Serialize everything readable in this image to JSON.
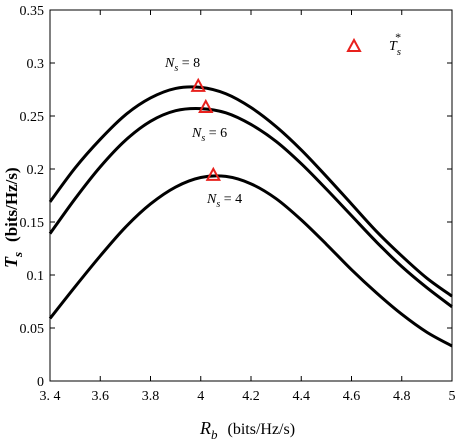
{
  "chart_data": {
    "type": "line",
    "title": "",
    "xlabel": {
      "symbol": "R",
      "subscript": "b",
      "units": "(bits/Hz/s)"
    },
    "ylabel": {
      "symbol": "T",
      "subscript": "s",
      "units": "(bits/Hz/s)"
    },
    "xlim": [
      3.4,
      5.0
    ],
    "ylim": [
      0,
      0.35
    ],
    "x_ticks": [
      "3. 4",
      "3.6",
      "3.8",
      "4",
      "4.2",
      "4.4",
      "4.6",
      "4.8",
      "5"
    ],
    "x_tick_values": [
      3.4,
      3.6,
      3.8,
      4.0,
      4.2,
      4.4,
      4.6,
      4.8,
      5.0
    ],
    "y_ticks": [
      "0",
      "0.05",
      "0.1",
      "0.15",
      "0.2",
      "0.25",
      "0.3",
      "0.35"
    ],
    "y_tick_values": [
      0,
      0.05,
      0.1,
      0.15,
      0.2,
      0.25,
      0.3,
      0.35
    ],
    "grid": false,
    "series": [
      {
        "name": "N_s = 8",
        "label_symbol": "N",
        "label_subscript": "s",
        "label_value": " = 8",
        "x": [
          3.4,
          3.5,
          3.6,
          3.7,
          3.8,
          3.9,
          4.0,
          4.1,
          4.2,
          4.3,
          4.4,
          4.5,
          4.6,
          4.7,
          4.8,
          4.9,
          5.0
        ],
        "y": [
          0.169,
          0.201,
          0.228,
          0.251,
          0.267,
          0.276,
          0.277,
          0.271,
          0.258,
          0.24,
          0.218,
          0.193,
          0.167,
          0.141,
          0.118,
          0.097,
          0.08
        ]
      },
      {
        "name": "N_s = 6",
        "label_symbol": "N",
        "label_subscript": "s",
        "label_value": " = 6",
        "x": [
          3.4,
          3.5,
          3.6,
          3.7,
          3.8,
          3.9,
          4.0,
          4.1,
          4.2,
          4.3,
          4.4,
          4.5,
          4.6,
          4.7,
          4.8,
          4.9,
          5.0
        ],
        "y": [
          0.139,
          0.172,
          0.202,
          0.227,
          0.245,
          0.255,
          0.257,
          0.253,
          0.242,
          0.226,
          0.205,
          0.181,
          0.156,
          0.131,
          0.108,
          0.088,
          0.07
        ]
      },
      {
        "name": "N_s = 4",
        "label_symbol": "N",
        "label_subscript": "s",
        "label_value": " = 4",
        "x": [
          3.4,
          3.5,
          3.6,
          3.7,
          3.8,
          3.9,
          4.0,
          4.1,
          4.2,
          4.3,
          4.4,
          4.5,
          4.6,
          4.7,
          4.8,
          4.9,
          5.0
        ],
        "y": [
          0.059,
          0.089,
          0.118,
          0.145,
          0.167,
          0.183,
          0.192,
          0.193,
          0.186,
          0.172,
          0.152,
          0.129,
          0.105,
          0.083,
          0.063,
          0.046,
          0.033
        ]
      }
    ],
    "markers": {
      "legend_symbol": "T",
      "legend_subscript": "s",
      "legend_superscript": "*",
      "color": "#e8211d",
      "points": [
        {
          "x": 3.99,
          "y": 0.278
        },
        {
          "x": 4.02,
          "y": 0.258
        },
        {
          "x": 4.05,
          "y": 0.194
        }
      ]
    },
    "legend_placement": "top-right",
    "line_color": "#000000"
  }
}
